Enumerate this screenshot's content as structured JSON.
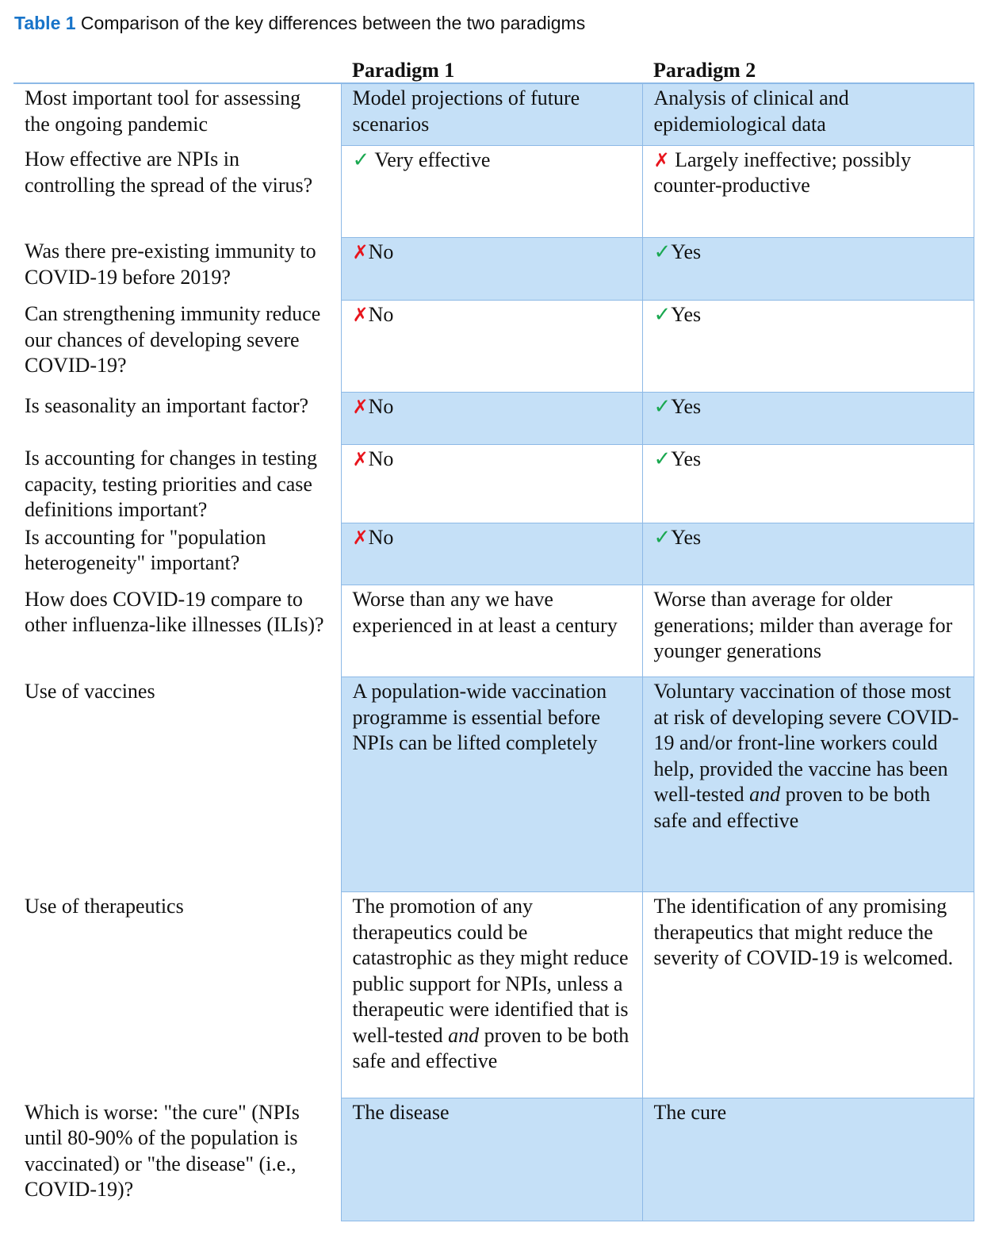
{
  "caption": {
    "label": "Table 1",
    "text": " Comparison of the key differences between the two paradigms"
  },
  "headers": [
    "",
    "Paradigm 1",
    "Paradigm 2"
  ],
  "colors": {
    "check": "#1aa850",
    "cross": "#e8141c",
    "shade": "#c5e0f7",
    "caption": "#1874c9"
  },
  "rows": [
    {
      "q": "Most important tool for assessing the ongoing pandemic",
      "p1": {
        "mark": "",
        "text": "Model projections of future scenarios"
      },
      "p2": {
        "mark": "",
        "text": "Analysis of clinical and epidemiological data"
      }
    },
    {
      "q": "How effective are NPIs in controlling the spread of the virus?",
      "p1": {
        "mark": "check",
        "text": " Very effective"
      },
      "p2": {
        "mark": "cross",
        "text": " Largely ineffective; possibly counter-productive"
      }
    },
    {
      "q": "Was there pre-existing immunity to COVID-19 before 2019?",
      "p1": {
        "mark": "cross",
        "text": "No"
      },
      "p2": {
        "mark": "check",
        "text": "Yes"
      }
    },
    {
      "q": "Can strengthening immunity reduce our chances of developing severe COVID-19?",
      "p1": {
        "mark": "cross",
        "text": "No"
      },
      "p2": {
        "mark": "check",
        "text": "Yes"
      }
    },
    {
      "q": "Is seasonality an important factor?",
      "p1": {
        "mark": "cross",
        "text": "No"
      },
      "p2": {
        "mark": "check",
        "text": "Yes"
      }
    },
    {
      "q": "Is accounting for changes in testing capacity, testing priorities and case definitions important?",
      "p1": {
        "mark": "cross",
        "text": "No"
      },
      "p2": {
        "mark": "check",
        "text": "Yes"
      }
    },
    {
      "q": "Is accounting for \"population heterogeneity\" important?",
      "p1": {
        "mark": "cross",
        "text": "No"
      },
      "p2": {
        "mark": "check",
        "text": "Yes"
      }
    },
    {
      "q": "How does COVID-19 compare to other influenza-like illnesses (ILIs)?",
      "p1": {
        "mark": "",
        "text": "Worse than any we have experienced in at least a century"
      },
      "p2": {
        "mark": "",
        "text": "Worse than average for older generations; milder than average for younger generations"
      }
    },
    {
      "q": "Use of vaccines",
      "p1": {
        "mark": "",
        "text": "A population-wide vaccination programme is essential before NPIs can be lifted completely"
      },
      "p2": {
        "mark": "",
        "html": "Voluntary vaccination of those most at risk of developing severe COVID-19 and/or front-line workers could help, provided the vaccine has been well-tested <i>and</i> proven to be both safe and effective",
        "text": "Voluntary vaccination of those most at risk of developing severe COVID-19 and/or front-line workers could help, provided the vaccine has been well-tested and proven to be both safe and effective"
      }
    },
    {
      "q": "Use of therapeutics",
      "p1": {
        "mark": "",
        "html": "The promotion of any therapeutics could be catastrophic as they might reduce public support for NPIs, unless a therapeutic were identified that is well-tested <i>and</i> proven to be both safe and effective",
        "text": "The promotion of any therapeutics could be catastrophic as they might reduce public support for NPIs, unless a therapeutic were identified that is well-tested and proven to be both safe and effective"
      },
      "p2": {
        "mark": "",
        "text": "The identification of any promising therapeutics that might reduce the severity of COVID-19 is welcomed."
      }
    },
    {
      "q": "Which is worse: \"the cure\" (NPIs until 80-90% of the population is vaccinated) or \"the disease\" (i.e., COVID-19)?",
      "p1": {
        "mark": "",
        "text": "The disease"
      },
      "p2": {
        "mark": "",
        "text": "The cure"
      }
    }
  ]
}
